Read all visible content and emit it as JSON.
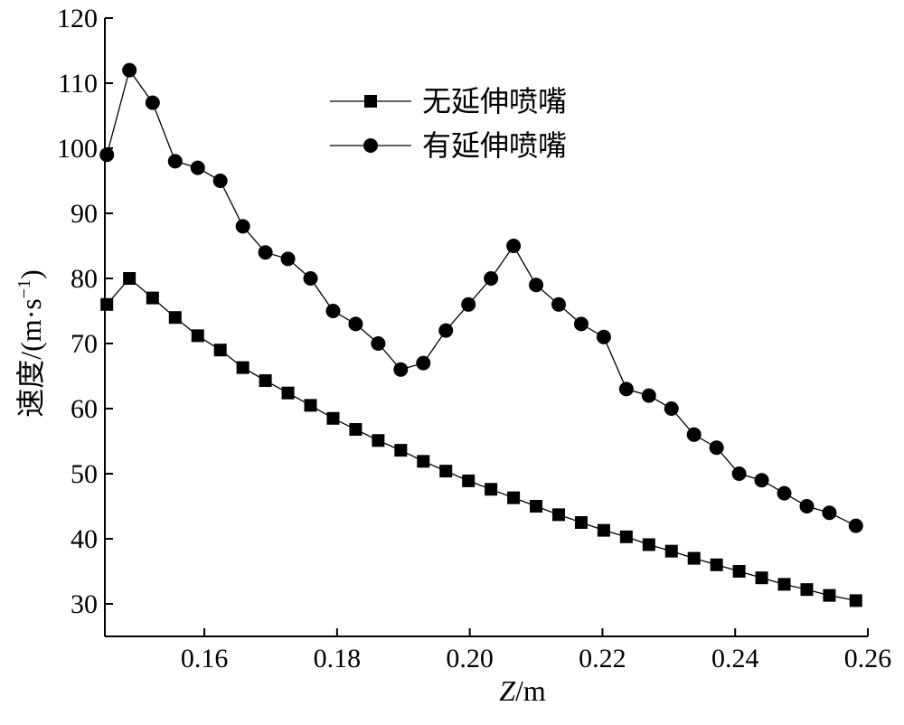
{
  "chart_data": {
    "type": "line",
    "xlabel": {
      "var": "Z",
      "unit": "/m"
    },
    "ylabel": {
      "text": "速度/(m·s",
      "exp": "−1",
      "close": ")"
    },
    "xlim": [
      0.145,
      0.26
    ],
    "ylim": [
      25,
      120
    ],
    "xticks": [
      0.16,
      0.18,
      0.2,
      0.22,
      0.24,
      0.26
    ],
    "xtick_labels": [
      "0.16",
      "0.18",
      "0.20",
      "0.22",
      "0.24",
      "0.26"
    ],
    "yticks": [
      30,
      40,
      50,
      60,
      70,
      80,
      90,
      100,
      110,
      120
    ],
    "ytick_labels": [
      "30",
      "40",
      "50",
      "60",
      "70",
      "80",
      "90",
      "100",
      "110",
      "120"
    ],
    "grid": false,
    "legend_position": "top-center",
    "series": [
      {
        "name": "无延伸喷嘴",
        "marker": "square",
        "color": "#000000",
        "x": [
          0.1453,
          0.1487,
          0.1522,
          0.1556,
          0.159,
          0.1624,
          0.1658,
          0.1692,
          0.1726,
          0.176,
          0.1794,
          0.1828,
          0.1862,
          0.1896,
          0.193,
          0.1964,
          0.1998,
          0.2032,
          0.2066,
          0.21,
          0.2134,
          0.2168,
          0.2202,
          0.2236,
          0.227,
          0.2304,
          0.2338,
          0.2372,
          0.2406,
          0.244,
          0.2474,
          0.2508,
          0.2542,
          0.2582
        ],
        "y": [
          76,
          80,
          77,
          74,
          71.2,
          69,
          66.3,
          64.3,
          62.4,
          60.5,
          58.5,
          56.8,
          55.1,
          53.6,
          51.9,
          50.4,
          48.9,
          47.6,
          46.3,
          45,
          43.7,
          42.5,
          41.3,
          40.3,
          39.1,
          38.1,
          37,
          36,
          35,
          34,
          33,
          32.2,
          31.3,
          30.5
        ]
      },
      {
        "name": "有延伸喷嘴",
        "marker": "circle",
        "color": "#000000",
        "x": [
          0.1453,
          0.1487,
          0.1522,
          0.1556,
          0.159,
          0.1624,
          0.1658,
          0.1692,
          0.1726,
          0.176,
          0.1794,
          0.1828,
          0.1862,
          0.1896,
          0.193,
          0.1964,
          0.1998,
          0.2032,
          0.2066,
          0.21,
          0.2134,
          0.2168,
          0.2202,
          0.2236,
          0.227,
          0.2304,
          0.2338,
          0.2372,
          0.2406,
          0.244,
          0.2474,
          0.2508,
          0.2542,
          0.2582
        ],
        "y": [
          99,
          112,
          107,
          98,
          97,
          95,
          88,
          84,
          83,
          80,
          75,
          73,
          70,
          66,
          67,
          72,
          76,
          80,
          85,
          79,
          76,
          73,
          71,
          63,
          62,
          60,
          56,
          54,
          50,
          49,
          47,
          45,
          44,
          42
        ]
      }
    ]
  }
}
